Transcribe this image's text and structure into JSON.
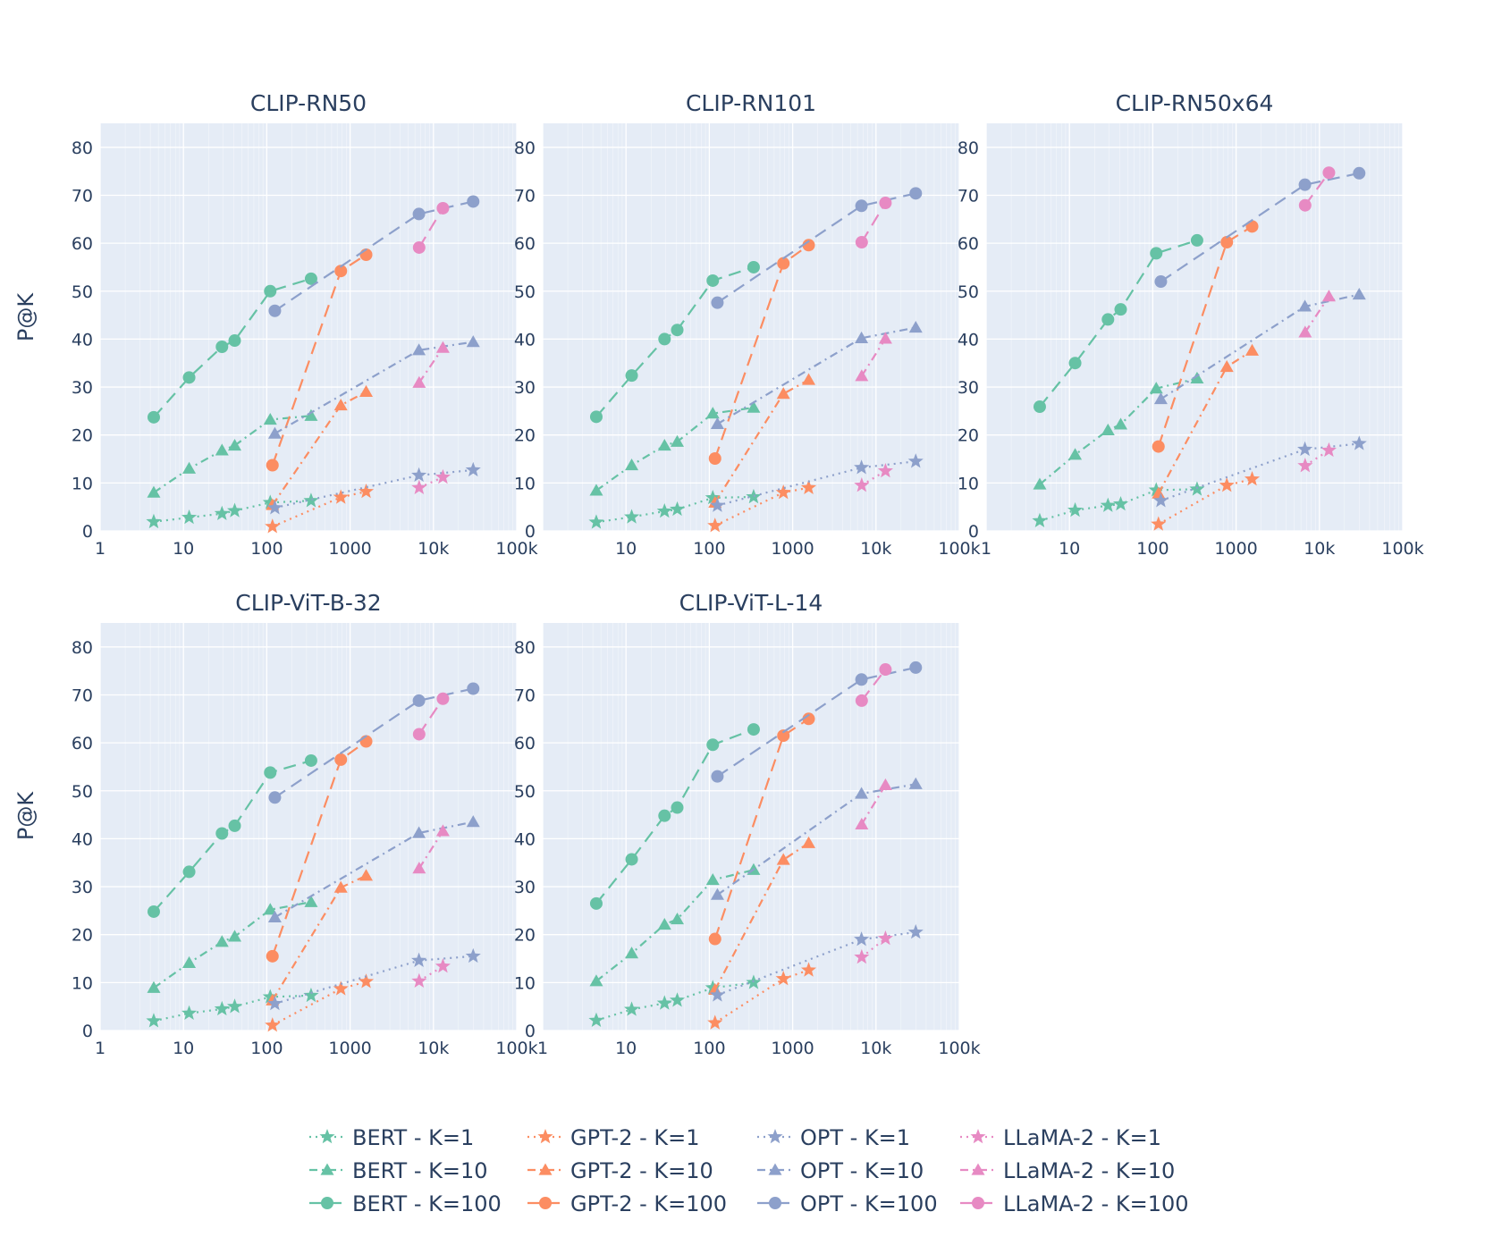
{
  "chart_data": {
    "type": "line",
    "ylabel": "P@K",
    "xscale": "log",
    "xlim": [
      1,
      100000
    ],
    "ylim": [
      0,
      85
    ],
    "xticks": [
      "1",
      "10",
      "100",
      "1000",
      "10k",
      "100k"
    ],
    "yticks": [
      "0",
      "10",
      "20",
      "30",
      "40",
      "50",
      "60",
      "70",
      "80"
    ],
    "families": [
      {
        "name": "BERT",
        "color": "#66c2a5",
        "x": [
          4.4,
          11.7,
          29,
          41.2,
          110,
          340
        ]
      },
      {
        "name": "GPT-2",
        "color": "#fc8d62",
        "x": [
          117,
          774,
          1557
        ]
      },
      {
        "name": "OPT",
        "color": "#8da0cb",
        "x": [
          125,
          6700,
          30000
        ]
      },
      {
        "name": "LLaMA-2",
        "color": "#e78ac3",
        "x": [
          6740,
          13000
        ]
      }
    ],
    "legend": [
      "BERT - K=1",
      "BERT - K=10",
      "BERT - K=100",
      "GPT-2 - K=1",
      "GPT-2 - K=10",
      "GPT-2 - K=100",
      "OPT - K=1",
      "OPT - K=10",
      "OPT - K=100",
      "LLaMA-2 - K=1",
      "LLaMA-2 - K=10",
      "LLaMA-2 - K=100"
    ],
    "panels": [
      {
        "title": "CLIP-RN50",
        "series": {
          "BERT": {
            "K1": [
              1.9,
              2.8,
              3.6,
              4.2,
              5.9,
              6.3
            ],
            "K10": [
              8,
              13,
              16.8,
              17.8,
              23.2,
              24
            ],
            "K100": [
              23.7,
              32,
              38.4,
              39.7,
              50,
              52.6
            ]
          },
          "GPT-2": {
            "K1": [
              0.9,
              7,
              8.2
            ],
            "K10": [
              5.4,
              26.2,
              29
            ],
            "K100": [
              13.7,
              54.2,
              57.6
            ]
          },
          "OPT": {
            "K1": [
              4.8,
              11.6,
              12.7
            ],
            "K10": [
              20.3,
              37.7,
              39.4
            ],
            "K100": [
              45.9,
              66.1,
              68.7
            ]
          },
          "LLaMA-2": {
            "K1": [
              9,
              11.2
            ],
            "K10": [
              30.9,
              38.2
            ],
            "K100": [
              59.1,
              67.3
            ]
          }
        }
      },
      {
        "title": "CLIP-RN101",
        "series": {
          "BERT": {
            "K1": [
              1.8,
              2.9,
              4.1,
              4.5,
              6.9,
              7.1
            ],
            "K10": [
              8.4,
              13.7,
              17.8,
              18.6,
              24.5,
              25.7
            ],
            "K100": [
              23.8,
              32.4,
              40,
              41.9,
              52.2,
              55
            ]
          },
          "GPT-2": {
            "K1": [
              1.1,
              8,
              9
            ],
            "K10": [
              5.9,
              28.6,
              31.5
            ],
            "K100": [
              15.1,
              55.8,
              59.6
            ]
          },
          "OPT": {
            "K1": [
              5.3,
              13.2,
              14.5
            ],
            "K10": [
              22.3,
              40.2,
              42.4
            ],
            "K100": [
              47.6,
              67.8,
              70.4
            ]
          },
          "LLaMA-2": {
            "K1": [
              9.5,
              12.5
            ],
            "K10": [
              32.3,
              40.1
            ],
            "K100": [
              60.2,
              68.4
            ]
          }
        }
      },
      {
        "title": "CLIP-RN50x64",
        "series": {
          "BERT": {
            "K1": [
              2.1,
              4.3,
              5.3,
              5.6,
              8.5,
              8.7
            ],
            "K10": [
              9.7,
              15.9,
              21,
              22.2,
              29.7,
              31.8
            ],
            "K100": [
              25.9,
              35,
              44.1,
              46.2,
              57.9,
              60.6
            ]
          },
          "GPT-2": {
            "K1": [
              1.4,
              9.5,
              10.8
            ],
            "K10": [
              7.8,
              34.2,
              37.6
            ],
            "K100": [
              17.6,
              60.2,
              63.5
            ]
          },
          "OPT": {
            "K1": [
              6.3,
              17,
              18.2
            ],
            "K10": [
              27.5,
              46.8,
              49.3
            ],
            "K100": [
              52,
              72.2,
              74.6
            ]
          },
          "LLaMA-2": {
            "K1": [
              13.6,
              16.8
            ],
            "K10": [
              41.4,
              48.9
            ],
            "K100": [
              67.9,
              74.7
            ]
          }
        }
      },
      {
        "title": "CLIP-ViT-B-32",
        "series": {
          "BERT": {
            "K1": [
              2,
              3.6,
              4.5,
              5,
              7,
              7.3
            ],
            "K10": [
              8.9,
              14.1,
              18.5,
              19.6,
              25.2,
              26.8
            ],
            "K100": [
              24.8,
              33.1,
              41.1,
              42.7,
              53.8,
              56.3
            ]
          },
          "GPT-2": {
            "K1": [
              1.1,
              8.7,
              10.2
            ],
            "K10": [
              6.3,
              29.8,
              32.3
            ],
            "K100": [
              15.5,
              56.5,
              60.3
            ]
          },
          "OPT": {
            "K1": [
              5.6,
              14.6,
              15.5
            ],
            "K10": [
              23.6,
              41.2,
              43.5
            ],
            "K100": [
              48.6,
              68.8,
              71.3
            ]
          },
          "LLaMA-2": {
            "K1": [
              10.3,
              13.4
            ],
            "K10": [
              33.8,
              41.6
            ],
            "K100": [
              61.8,
              69.2
            ]
          }
        }
      },
      {
        "title": "CLIP-ViT-L-14",
        "series": {
          "BERT": {
            "K1": [
              2.1,
              4.4,
              5.7,
              6.3,
              8.9,
              10
            ],
            "K10": [
              10.3,
              16.1,
              22.1,
              23.2,
              31.4,
              33.5
            ],
            "K100": [
              26.5,
              35.7,
              44.8,
              46.5,
              59.6,
              62.8
            ]
          },
          "GPT-2": {
            "K1": [
              1.6,
              10.8,
              12.6
            ],
            "K10": [
              8.5,
              35.6,
              39.1
            ],
            "K100": [
              19.1,
              61.5,
              65
            ]
          },
          "OPT": {
            "K1": [
              7.4,
              19,
              20.5
            ],
            "K10": [
              28.3,
              49.4,
              51.4
            ],
            "K100": [
              53,
              73.2,
              75.7
            ]
          },
          "LLaMA-2": {
            "K1": [
              15.3,
              19.2
            ],
            "K10": [
              43,
              51.2
            ],
            "K100": [
              68.8,
              75.3
            ]
          }
        }
      }
    ]
  }
}
